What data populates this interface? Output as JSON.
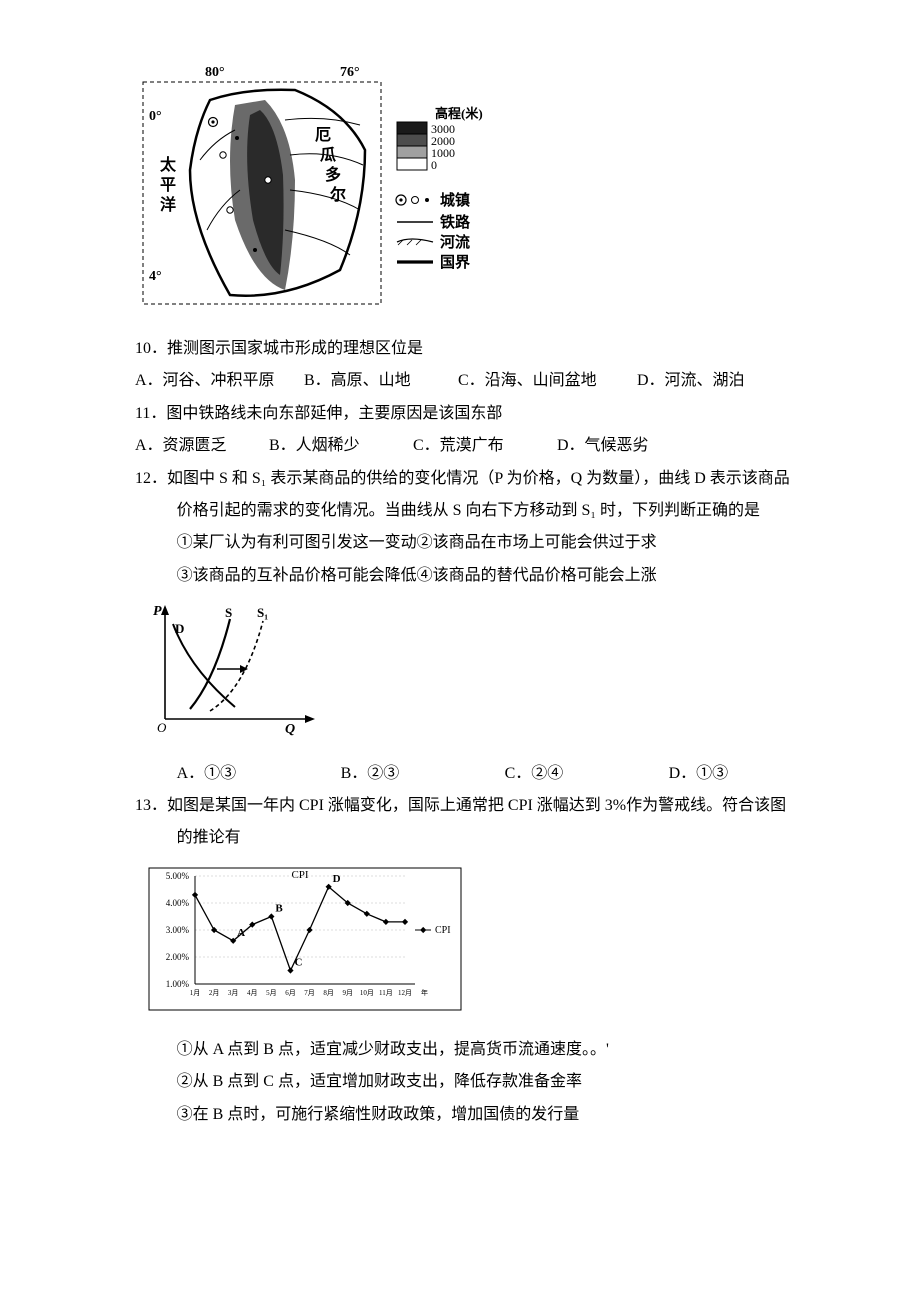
{
  "map": {
    "lon_labels": [
      "80°",
      "76°"
    ],
    "lat_labels": [
      "0°",
      "4°"
    ],
    "ocean_label": "太\n平\n洋",
    "country_label": "厄\n瓜\n多\n尔",
    "legend_title": "高程(米)",
    "elev_values": [
      "3000",
      "2000",
      "1000",
      "0"
    ],
    "elev_colors": [
      "#1a1a1a",
      "#4d4d4d",
      "#a0a0a0",
      "#ffffff"
    ],
    "legend_items": [
      {
        "label": "城镇"
      },
      {
        "label": "铁路"
      },
      {
        "label": "河流"
      },
      {
        "label": "国界"
      }
    ],
    "axis_color": "#000",
    "border_color": "#000"
  },
  "q10": {
    "stem": "10．推测图示国家城市形成的理想区位是",
    "opts": {
      "A": "A．河谷、冲积平原",
      "B": "B．高原、山地",
      "C": "C．沿海、山间盆地",
      "D": "D．河流、湖泊"
    }
  },
  "q11": {
    "stem": "11．图中铁路线未向东部延伸，主要原因是该国东部",
    "opts": {
      "A": "A．资源匮乏",
      "B": "B．人烟稀少",
      "C": "C．荒漠广布",
      "D": "D．气候恶劣"
    }
  },
  "q12": {
    "stem_l1": "12．如图中 S 和 S₁ 表示某商品的供给的变化情况（P 为价格，Q 为数量），曲线 D 表示该商品",
    "stem_l2": "价格引起的需求的变化情况。当曲线从 S 向右下方移动到 S₁ 时，下列判断正确的是",
    "s1": "①某厂认为有利可图引发这一变动②该商品在市场上可能会供过于求",
    "s2": "③该商品的互补品价格可能会降低④该商品的替代品价格可能会上涨",
    "chart": {
      "axis_P": "P",
      "axis_Q": "Q",
      "origin": "O",
      "labels": {
        "D": "D",
        "S": "S",
        "S1": "S₁"
      },
      "arrow_color": "#000",
      "line_color": "#000",
      "dash_color": "#000"
    },
    "opts": {
      "A": "A．①③",
      "B": "B．②③",
      "C": "C．②④",
      "D": "D．①③"
    }
  },
  "q13": {
    "stem_l1": "13．如图是某国一年内 CPI 涨幅变化，国际上通常把 CPI 涨幅达到 3%作为警戒线。符合该图",
    "stem_l2": "的推论有",
    "chart": {
      "y_labels": [
        "5.00%",
        "4.00%",
        "3.00%",
        "2.00%",
        "1.00%"
      ],
      "y_values": [
        5.0,
        4.0,
        3.0,
        2.0,
        1.0
      ],
      "x_labels": [
        "1月",
        "2月",
        "3月",
        "4月",
        "5月",
        "6月",
        "7月",
        "8月",
        "9月",
        "10月",
        "11月",
        "12月",
        "年"
      ],
      "points": [
        {
          "m": 1,
          "v": 4.3
        },
        {
          "m": 2,
          "v": 3.0
        },
        {
          "m": 3,
          "v": 2.6
        },
        {
          "m": 4,
          "v": 3.2
        },
        {
          "m": 5,
          "v": 3.5
        },
        {
          "m": 6,
          "v": 1.5
        },
        {
          "m": 7,
          "v": 3.0
        },
        {
          "m": 8,
          "v": 4.6
        },
        {
          "m": 9,
          "v": 4.0
        },
        {
          "m": 10,
          "v": 3.6
        },
        {
          "m": 11,
          "v": 3.3
        },
        {
          "m": 12,
          "v": 3.3
        }
      ],
      "pt_labels": {
        "A": {
          "m": 3,
          "v": 2.6
        },
        "B": {
          "m": 5,
          "v": 3.5
        },
        "C": {
          "m": 6,
          "v": 1.5
        },
        "D": {
          "m": 8,
          "v": 4.6
        }
      },
      "series_label": "CPI",
      "title": "CPI",
      "line_color": "#000",
      "marker_color": "#000",
      "border_color": "#000",
      "grid_color": "#bbb"
    },
    "s1": "①从 A 点到 B 点，适宜减少财政支出，提高货币流通速度。。'",
    "s2": "②从 B 点到 C 点，适宜增加财政支出，降低存款准备金率",
    "s3": "③在 B 点时，可施行紧缩性财政政策，增加国债的发行量"
  }
}
